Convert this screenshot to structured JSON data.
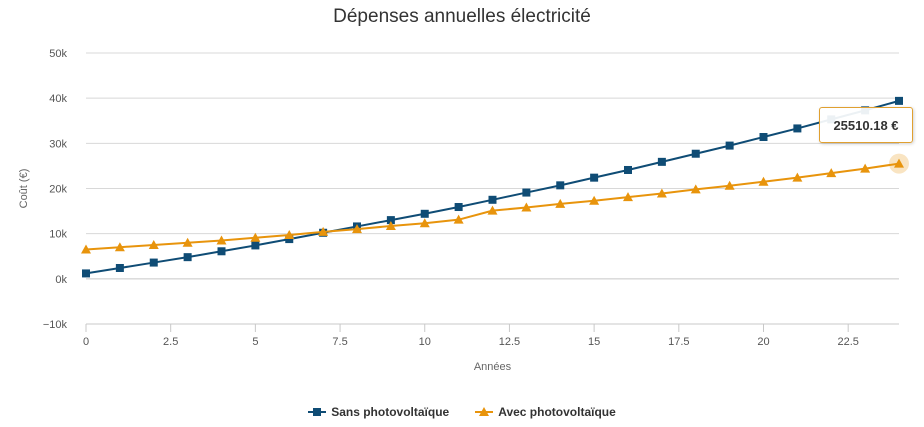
{
  "chart_data": {
    "type": "line",
    "title": "Dépenses annuelles électricité",
    "xlabel": "Années",
    "ylabel": "Coût (€)",
    "xlim": [
      0,
      24
    ],
    "ylim": [
      -10000,
      50000
    ],
    "x_ticks": [
      0,
      2.5,
      5,
      7.5,
      10,
      12.5,
      15,
      17.5,
      20,
      22.5
    ],
    "x_tick_labels": [
      "0",
      "2.5",
      "5",
      "7.5",
      "10",
      "12.5",
      "15",
      "17.5",
      "20",
      "22.5"
    ],
    "y_ticks": [
      -10000,
      0,
      10000,
      20000,
      30000,
      40000,
      50000
    ],
    "y_tick_labels": [
      "−10k",
      "0k",
      "10k",
      "20k",
      "30k",
      "40k",
      "50k"
    ],
    "grid": true,
    "legend_position": "bottom-center",
    "x": [
      0,
      1,
      2,
      3,
      4,
      5,
      6,
      7,
      8,
      9,
      10,
      11,
      12,
      13,
      14,
      15,
      16,
      17,
      18,
      19,
      20,
      21,
      22,
      23,
      24
    ],
    "series": [
      {
        "name": "Sans photovoltaïque",
        "color": "#0f4c75",
        "marker": "square",
        "values": [
          1200,
          2400,
          3600,
          4800,
          6100,
          7400,
          8800,
          10200,
          11600,
          13000,
          14400,
          15900,
          17500,
          19100,
          20700,
          22400,
          24100,
          25900,
          27700,
          29500,
          31400,
          33300,
          35300,
          37300,
          39400
        ]
      },
      {
        "name": "Avec photovoltaïque",
        "color": "#e8940c",
        "marker": "triangle",
        "values": [
          6500,
          7000,
          7500,
          8000,
          8500,
          9100,
          9700,
          10400,
          11000,
          11700,
          12300,
          13100,
          15100,
          15800,
          16600,
          17300,
          18100,
          18900,
          19800,
          20600,
          21500,
          22400,
          23400,
          24400,
          25510.18
        ]
      }
    ],
    "tooltip": {
      "text": "25510.18 €",
      "series_index": 1,
      "x": 24
    }
  }
}
